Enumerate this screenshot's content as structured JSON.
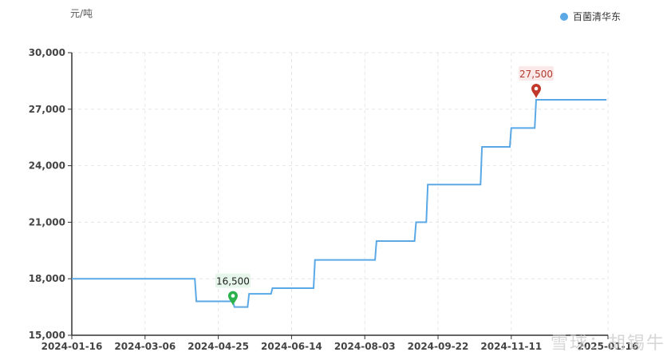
{
  "unit_label": "元/吨",
  "legend": {
    "series_name": "百菌清华东",
    "color": "#5aa9e6"
  },
  "watermark": "雪球：胡锡牛",
  "chart_data": {
    "type": "line",
    "title": "",
    "xlabel": "",
    "ylabel": "元/吨",
    "x_ticks": [
      "2024-01-16",
      "2024-03-06",
      "2024-04-25",
      "2024-06-14",
      "2024-08-03",
      "2024-09-22",
      "2024-11-11",
      "2025-01-16"
    ],
    "y_ticks": [
      15000,
      18000,
      21000,
      24000,
      27000,
      30000
    ],
    "y_tick_labels": [
      "15,000",
      "18,000",
      "21,000",
      "24,000",
      "27,000",
      "30,000"
    ],
    "ylim": [
      15000,
      30000
    ],
    "xlim": [
      "2024-01-16",
      "2025-01-16"
    ],
    "grid": true,
    "legend_position": "top-right",
    "series": [
      {
        "name": "百菌清华东",
        "color": "#5aa9e6",
        "step": true,
        "points": [
          [
            "2024-01-16",
            18000
          ],
          [
            "2024-04-09",
            18000
          ],
          [
            "2024-04-10",
            16800
          ],
          [
            "2024-05-05",
            16800
          ],
          [
            "2024-05-06",
            16500
          ],
          [
            "2024-05-15",
            16500
          ],
          [
            "2024-05-16",
            17200
          ],
          [
            "2024-05-31",
            17200
          ],
          [
            "2024-06-01",
            17500
          ],
          [
            "2024-06-29",
            17500
          ],
          [
            "2024-06-30",
            19000
          ],
          [
            "2024-08-10",
            19000
          ],
          [
            "2024-08-11",
            20000
          ],
          [
            "2024-09-06",
            20000
          ],
          [
            "2024-09-07",
            21000
          ],
          [
            "2024-09-14",
            21000
          ],
          [
            "2024-09-15",
            23000
          ],
          [
            "2024-10-21",
            23000
          ],
          [
            "2024-10-22",
            25000
          ],
          [
            "2024-11-10",
            25000
          ],
          [
            "2024-11-11",
            26000
          ],
          [
            "2024-11-27",
            26000
          ],
          [
            "2024-11-28",
            27500
          ],
          [
            "2025-01-15",
            27500
          ]
        ]
      }
    ],
    "annotations": [
      {
        "kind": "min",
        "date": "2024-05-05",
        "value": 16500,
        "label": "16,500",
        "color": "#2bb24c"
      },
      {
        "kind": "max",
        "date": "2024-11-28",
        "value": 27500,
        "label": "27,500",
        "color": "#c0392b"
      }
    ]
  }
}
